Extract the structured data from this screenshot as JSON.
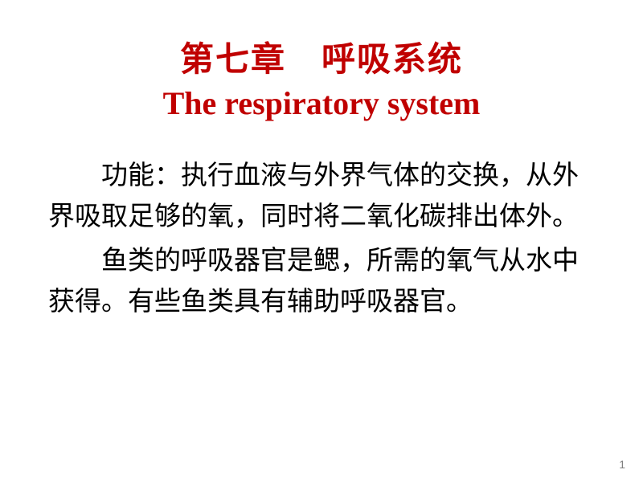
{
  "title_cn": "第七章　呼吸系统",
  "title_en": "The respiratory system",
  "title_color": "#c00000",
  "title_cn_fontsize": 42,
  "title_en_fontsize": 40,
  "body_color": "#000000",
  "body_fontsize": 33,
  "paragraphs": [
    "功能：执行血液与外界气体的交换，从外界吸取足够的氧，同时将二氧化碳排出体外。",
    "鱼类的呼吸器官是鳃，所需的氧气从水中获得。有些鱼类具有辅助呼吸器官。"
  ],
  "page_number": "1",
  "page_number_color": "#808080",
  "page_number_fontsize": 14,
  "background_color": "#ffffff"
}
